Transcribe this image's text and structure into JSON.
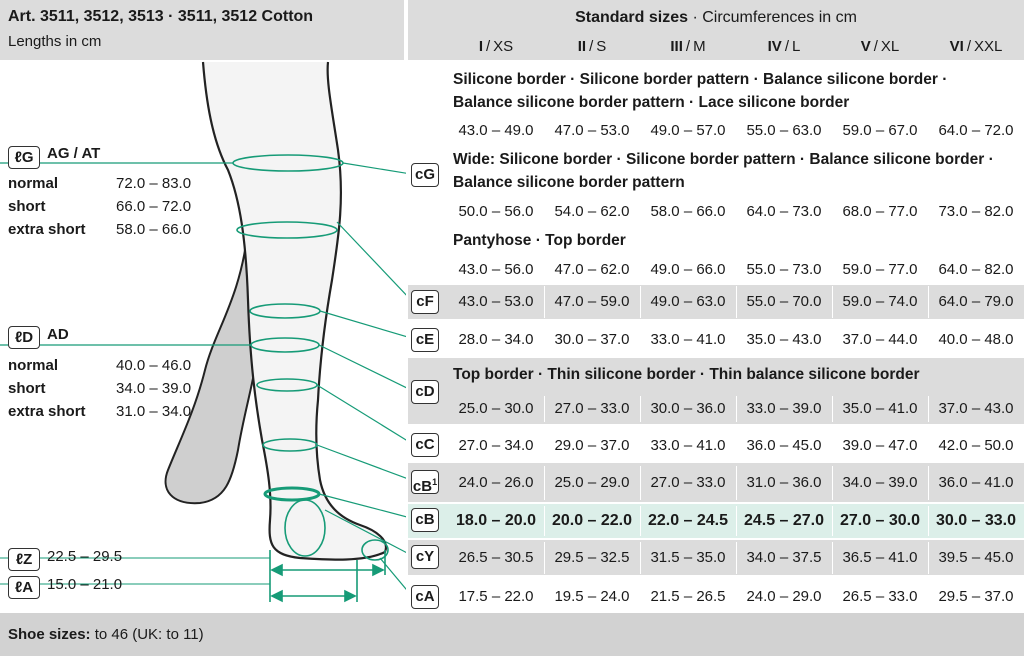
{
  "header": {
    "title": "Art. 3511, 3512, 3513 · 3511, 3512 Cotton",
    "subtitle": "Lengths in cm",
    "table_title_bold": "Standard sizes",
    "table_title_rest": " · Circumferences in cm"
  },
  "sizes": [
    {
      "roman": "I",
      "label": "XS"
    },
    {
      "roman": "II",
      "label": "S"
    },
    {
      "roman": "III",
      "label": "M"
    },
    {
      "roman": "IV",
      "label": "L"
    },
    {
      "roman": "V",
      "label": "XL"
    },
    {
      "roman": "VI",
      "label": "XXL"
    }
  ],
  "sections": {
    "s1_line1": "Silicone border · Silicone border pattern · Balance silicone border ·",
    "s1_line2": "Balance silicone border pattern · Lace silicone border",
    "s2_line1": "Wide: Silicone border · Silicone border pattern · Balance silicone border ·",
    "s2_line2": "Balance silicone border pattern",
    "s3": "Pantyhose · Top border",
    "s4": "Top border · Thin silicone border · Thin balance silicone border"
  },
  "rows": {
    "cG1": [
      "43.0 – 49.0",
      "47.0 – 53.0",
      "49.0 – 57.0",
      "55.0 – 63.0",
      "59.0 – 67.0",
      "64.0 – 72.0"
    ],
    "cG2": [
      "50.0 – 56.0",
      "54.0 – 62.0",
      "58.0 – 66.0",
      "64.0 – 73.0",
      "68.0 – 77.0",
      "73.0 – 82.0"
    ],
    "cG3": [
      "43.0 – 56.0",
      "47.0 – 62.0",
      "49.0 – 66.0",
      "55.0 – 73.0",
      "59.0 – 77.0",
      "64.0 – 82.0"
    ],
    "cF": [
      "43.0 – 53.0",
      "47.0 – 59.0",
      "49.0 – 63.0",
      "55.0 – 70.0",
      "59.0 – 74.0",
      "64.0 – 79.0"
    ],
    "cE": [
      "28.0 – 34.0",
      "30.0 – 37.0",
      "33.0 – 41.0",
      "35.0 – 43.0",
      "37.0 – 44.0",
      "40.0 – 48.0"
    ],
    "cD": [
      "25.0 – 30.0",
      "27.0 – 33.0",
      "30.0 – 36.0",
      "33.0 – 39.0",
      "35.0 – 41.0",
      "37.0 – 43.0"
    ],
    "cC": [
      "27.0 – 34.0",
      "29.0 – 37.0",
      "33.0 – 41.0",
      "36.0 – 45.0",
      "39.0 – 47.0",
      "42.0 – 50.0"
    ],
    "cB1": [
      "24.0 – 26.0",
      "25.0 – 29.0",
      "27.0 – 33.0",
      "31.0 – 36.0",
      "34.0 – 39.0",
      "36.0 – 41.0"
    ],
    "cB": [
      "18.0 – 20.0",
      "20.0 – 22.0",
      "22.0 – 24.5",
      "24.5 – 27.0",
      "27.0 – 30.0",
      "30.0 – 33.0"
    ],
    "cY": [
      "26.5 – 30.5",
      "29.5 – 32.5",
      "31.5 – 35.0",
      "34.0 – 37.5",
      "36.5 – 41.0",
      "39.5 – 45.0"
    ],
    "cA": [
      "17.5 – 22.0",
      "19.5 – 24.0",
      "21.5 – 26.5",
      "24.0 – 29.0",
      "26.5 – 33.0",
      "29.5 – 37.0"
    ]
  },
  "badges": {
    "cG": "cG",
    "cF": "cF",
    "cE": "cE",
    "cD": "cD",
    "cC": "cC",
    "cB1": "cB",
    "cB1_sup": "1",
    "cB": "cB",
    "cY": "cY",
    "cA": "cA"
  },
  "lengths": {
    "G": {
      "badge": "ℓG",
      "name": "AG / AT",
      "items": [
        {
          "label": "normal",
          "value": "72.0 – 83.0"
        },
        {
          "label": "short",
          "value": "66.0 – 72.0"
        },
        {
          "label": "extra short",
          "value": "58.0 – 66.0"
        }
      ]
    },
    "D": {
      "badge": "ℓD",
      "name": "AD",
      "items": [
        {
          "label": "normal",
          "value": "40.0 – 46.0"
        },
        {
          "label": "short",
          "value": "34.0 – 39.0"
        },
        {
          "label": "extra short",
          "value": "31.0 – 34.0"
        }
      ]
    },
    "Z": {
      "badge": "ℓZ",
      "value": "22.5 – 29.5"
    },
    "A": {
      "badge": "ℓA",
      "value": "15.0 – 21.0"
    }
  },
  "footer": {
    "bold": "Shoe sizes:",
    "rest": " to 46 (UK: to 11)"
  },
  "colors": {
    "accent": "#169b77",
    "highlight": "#dcefe9",
    "gray": "#dcdcdc",
    "leg_fill": "#f4f4f4",
    "leg_shade": "#cfcfcf"
  }
}
